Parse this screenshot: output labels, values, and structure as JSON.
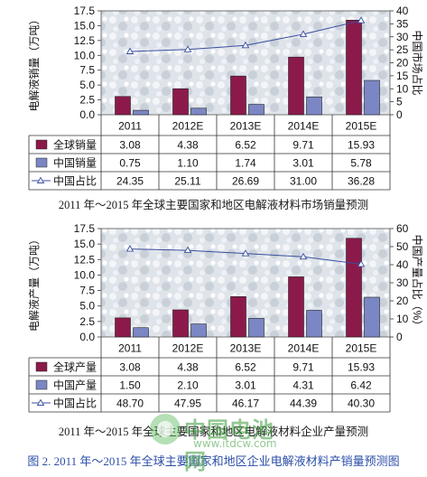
{
  "chart_data": [
    {
      "type": "bar",
      "title": "",
      "categories": [
        "2011",
        "2012E",
        "2013E",
        "2014E",
        "2015E"
      ],
      "ylabel": "电解液销量（万吨）",
      "y2label": "中国市场占比",
      "ylim": [
        0,
        17.5
      ],
      "yticks": [
        "0.0",
        "2.5",
        "5.0",
        "7.5",
        "10.0",
        "12.5",
        "15.0",
        "17.5"
      ],
      "y2lim": [
        0,
        40
      ],
      "y2ticks": [
        "0",
        "5",
        "10",
        "15",
        "20",
        "25",
        "30",
        "35",
        "40"
      ],
      "series": [
        {
          "name": "全球销量",
          "kind": "bar",
          "axis": "left",
          "color": "#8b1a4a",
          "values": [
            3.08,
            4.38,
            6.52,
            9.71,
            15.93
          ],
          "labels": [
            "3.08",
            "4.38",
            "6.52",
            "9.71",
            "15.93"
          ]
        },
        {
          "name": "中国销量",
          "kind": "bar",
          "axis": "left",
          "color": "#7b86c4",
          "values": [
            0.75,
            1.1,
            1.74,
            3.01,
            5.78
          ],
          "labels": [
            "0.75",
            "1.10",
            "1.74",
            "3.01",
            "5.78"
          ]
        },
        {
          "name": "中国占比",
          "kind": "line",
          "axis": "right",
          "color": "#3a4fa0",
          "values": [
            24.35,
            25.11,
            26.69,
            31.0,
            36.28
          ],
          "labels": [
            "24.35",
            "25.11",
            "26.69",
            "31.00",
            "36.28"
          ]
        }
      ],
      "legend_placement": "data table below chart",
      "grid": false
    },
    {
      "type": "bar",
      "title": "",
      "categories": [
        "2011",
        "2012E",
        "2013E",
        "2014E",
        "2015E"
      ],
      "ylabel": "电解液产量（万吨）",
      "y2label": "中国产量占比（%）",
      "ylim": [
        0,
        17.5
      ],
      "yticks": [
        "0.0",
        "2.5",
        "5.0",
        "7.5",
        "10.0",
        "12.5",
        "15.0",
        "17.5"
      ],
      "y2lim": [
        0,
        60
      ],
      "y2ticks": [
        "0",
        "10",
        "20",
        "30",
        "40",
        "50",
        "60"
      ],
      "series": [
        {
          "name": "全球产量",
          "kind": "bar",
          "axis": "left",
          "color": "#8b1a4a",
          "values": [
            3.08,
            4.38,
            6.52,
            9.71,
            15.93
          ],
          "labels": [
            "3.08",
            "4.38",
            "6.52",
            "9.71",
            "15.93"
          ]
        },
        {
          "name": "中国产量",
          "kind": "bar",
          "axis": "left",
          "color": "#7b86c4",
          "values": [
            1.5,
            2.1,
            3.01,
            4.31,
            6.42
          ],
          "labels": [
            "1.50",
            "2.10",
            "3.01",
            "4.31",
            "6.42"
          ]
        },
        {
          "name": "中国占比",
          "kind": "line",
          "axis": "right",
          "color": "#3a4fa0",
          "values": [
            48.7,
            47.95,
            46.17,
            44.39,
            40.3
          ],
          "labels": [
            "48.70",
            "47.95",
            "46.17",
            "44.39",
            "40.30"
          ]
        }
      ],
      "legend_placement": "data table below chart",
      "grid": false
    }
  ],
  "captions": {
    "top": "2011 年～2015 年全球主要国家和地区电解液材料市场销量预测",
    "bottom": "2011 年～2015 年全球主要国家和地区电解液材料企业产量预测",
    "figure": "图 2. 2011 年～2015 年全球主要国家和地区企业电解液材料产销量预测图"
  },
  "watermark": {
    "text": "中国电池网",
    "url": "www.itdcw.com"
  }
}
